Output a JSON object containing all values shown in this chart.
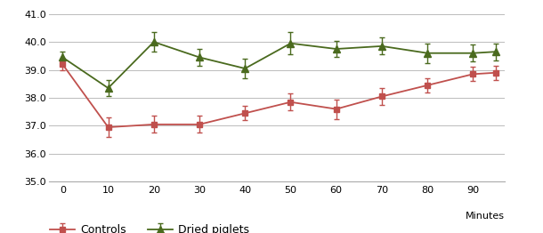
{
  "x": [
    0,
    10,
    20,
    30,
    40,
    50,
    60,
    70,
    80,
    90,
    95
  ],
  "controls_y": [
    39.2,
    36.95,
    37.05,
    37.05,
    37.45,
    37.85,
    37.6,
    38.05,
    38.45,
    38.85,
    38.9
  ],
  "controls_yerr": [
    0.2,
    0.35,
    0.3,
    0.3,
    0.25,
    0.3,
    0.35,
    0.3,
    0.25,
    0.25,
    0.25
  ],
  "dried_y": [
    39.45,
    38.35,
    40.0,
    39.45,
    39.05,
    39.95,
    39.75,
    39.85,
    39.6,
    39.6,
    39.65
  ],
  "dried_yerr": [
    0.2,
    0.3,
    0.35,
    0.3,
    0.35,
    0.4,
    0.3,
    0.3,
    0.35,
    0.3,
    0.3
  ],
  "controls_color": "#c0504d",
  "dried_color": "#4a6a1e",
  "controls_label": "Controls",
  "dried_label": "Dried piglets",
  "xlabel": "Minutes",
  "ylim": [
    35.0,
    41.0
  ],
  "yticks": [
    35.0,
    36.0,
    37.0,
    38.0,
    39.0,
    40.0,
    41.0
  ],
  "xticks": [
    0,
    10,
    20,
    30,
    40,
    50,
    60,
    70,
    80,
    90
  ],
  "background_color": "#ffffff",
  "grid_color": "#bbbbbb"
}
